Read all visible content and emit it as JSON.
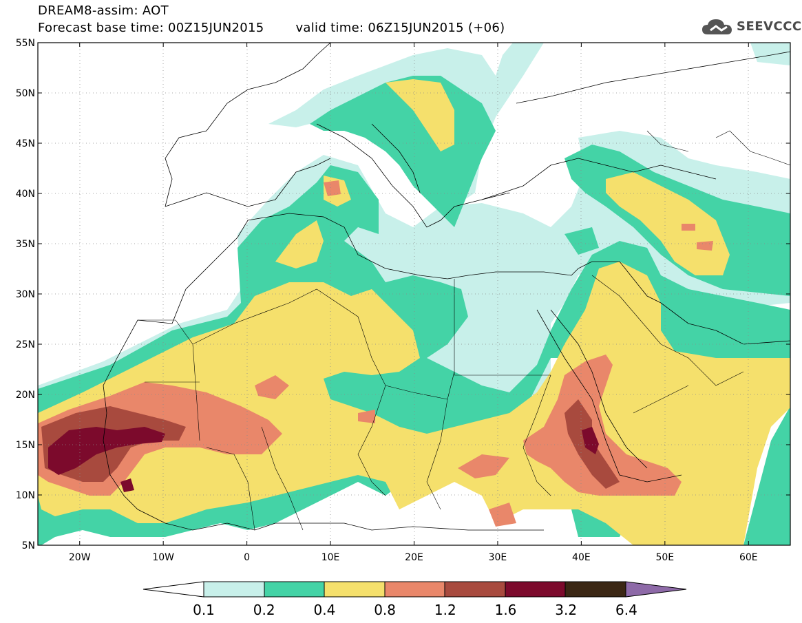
{
  "header": {
    "line1": "DREAM8-assim: AOT",
    "base_time": "Forecast base time: 00Z15JUN2015",
    "valid_time": "valid time: 06Z15JUN2015 (+06)"
  },
  "logo": {
    "text": "SEEVCCC",
    "icon": "cloud-icon"
  },
  "map": {
    "lat_labels": [
      "55N",
      "50N",
      "45N",
      "40N",
      "35N",
      "30N",
      "25N",
      "20N",
      "15N",
      "10N",
      "5N"
    ],
    "lon_labels": [
      "20W",
      "10W",
      "0",
      "10E",
      "20E",
      "30E",
      "40E",
      "50E",
      "60E"
    ],
    "lat_range": [
      5,
      55
    ],
    "lon_range": [
      -25,
      65
    ],
    "gridlines": "dotted"
  },
  "colorbar": {
    "labels": [
      "0.1",
      "0.2",
      "0.4",
      "0.8",
      "1.2",
      "1.6",
      "3.2",
      "6.4"
    ],
    "colors": [
      "#ffffff",
      "#c8f0ea",
      "#44d3a6",
      "#f5e06c",
      "#e9876a",
      "#a84a3e",
      "#7c0a2c",
      "#3b2714",
      "#8e6aa8"
    ]
  }
}
